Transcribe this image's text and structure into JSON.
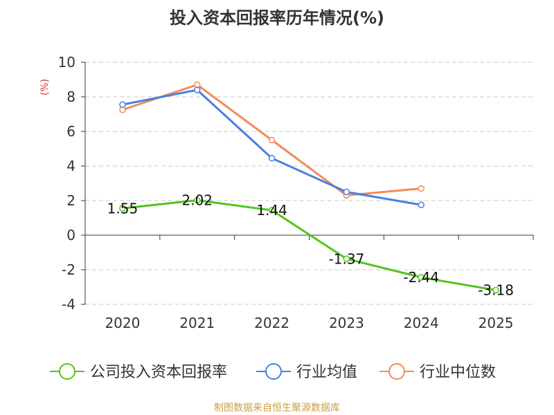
{
  "chart_data": {
    "type": "line",
    "title": "投入资本回报率历年情况(%)",
    "ylabel": "(%)",
    "xlabel": "",
    "categories": [
      "2020",
      "2021",
      "2022",
      "2023",
      "2024",
      "2025"
    ],
    "ylim": [
      -4,
      10
    ],
    "yticks": [
      -4,
      -2,
      0,
      2,
      4,
      6,
      8,
      10
    ],
    "ytick_labels": [
      "-4",
      "-2",
      "0",
      "2",
      "4",
      "6",
      "8",
      "10"
    ],
    "grid": true,
    "legend_position": "bottom",
    "series": [
      {
        "name": "公司投入资本回报率",
        "color": "#52c41a",
        "values": [
          1.55,
          2.02,
          1.44,
          -1.37,
          -2.44,
          -3.18
        ],
        "data_labels": [
          "1.55",
          "2.02",
          "1.44",
          "-1.37",
          "-2.44",
          "-3.18"
        ]
      },
      {
        "name": "行业均值",
        "color": "#4a7fe0",
        "values": [
          7.55,
          8.4,
          4.45,
          2.5,
          1.75,
          null
        ]
      },
      {
        "name": "行业中位数",
        "color": "#f28a5a",
        "values": [
          7.25,
          8.7,
          5.5,
          2.3,
          2.7,
          null
        ]
      }
    ]
  },
  "source": "制图数据来自恒生聚源数据库"
}
